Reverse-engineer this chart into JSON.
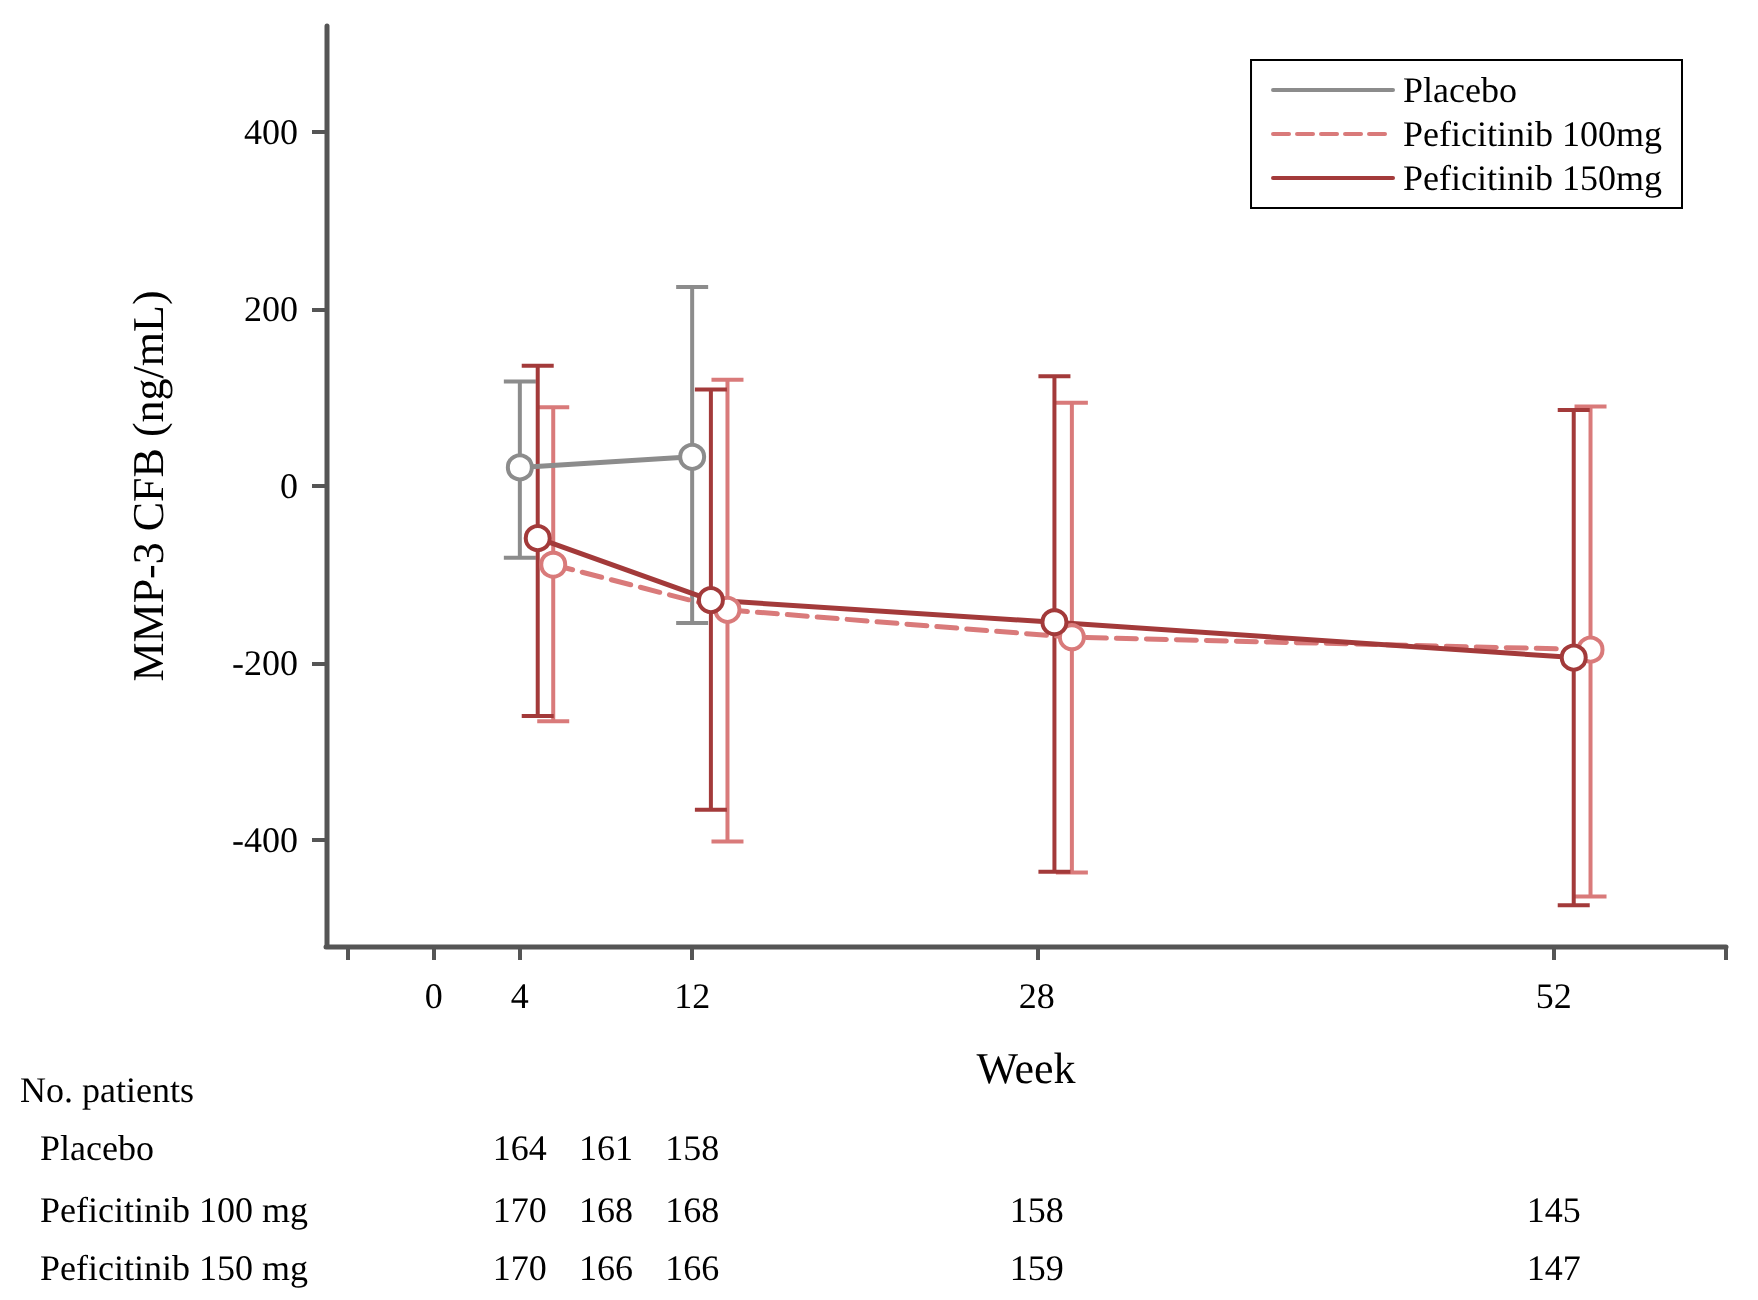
{
  "chart_data": {
    "type": "line",
    "xlabel": "Week",
    "ylabel": "MMP-3 CFB (ng/mL)",
    "xlim": [
      -5,
      60
    ],
    "xticks": [
      {
        "value": -4,
        "label": null
      },
      0,
      4,
      12,
      28,
      52,
      {
        "value": 60,
        "label": null
      }
    ],
    "ylim": [
      -520,
      520
    ],
    "yticks": [
      -400,
      -200,
      0,
      200,
      400
    ],
    "grid": false,
    "legend": "top right",
    "marker": "circle",
    "series": [
      {
        "name": "Placebo",
        "color": "#8c8c8c",
        "line_style": "solid",
        "x": [
          4,
          12
        ],
        "values": [
          21,
          33
        ],
        "errors": [
          [
            -81,
            118
          ],
          [
            -155,
            225
          ]
        ]
      },
      {
        "name": "Peficitinib 100mg",
        "color": "#d97a7a",
        "line_style": "dashed",
        "x": [
          5.55,
          13.64,
          29.63,
          53.71
        ],
        "values": [
          -89,
          -140,
          -171,
          -185
        ],
        "errors": [
          [
            -266,
            89
          ],
          [
            -402,
            120
          ],
          [
            -437,
            94
          ],
          [
            -464,
            90
          ]
        ]
      },
      {
        "name": "Peficitinib 150mg",
        "color": "#a33a3a",
        "line_style": "solid",
        "x": [
          4.83,
          12.87,
          28.82,
          52.93
        ],
        "values": [
          -59,
          -129,
          -154,
          -194
        ],
        "errors": [
          [
            -260,
            136
          ],
          [
            -366,
            109
          ],
          [
            -436,
            124
          ],
          [
            -474,
            86
          ]
        ]
      }
    ],
    "annotations": [
      "No. patients",
      "Placebo",
      "164",
      "161",
      "158",
      "Peficitinib 100 mg",
      "170",
      "168",
      "168",
      "158",
      "145",
      "Peficitinib 150 mg",
      "170",
      "166",
      "166",
      "159",
      "147"
    ]
  }
}
